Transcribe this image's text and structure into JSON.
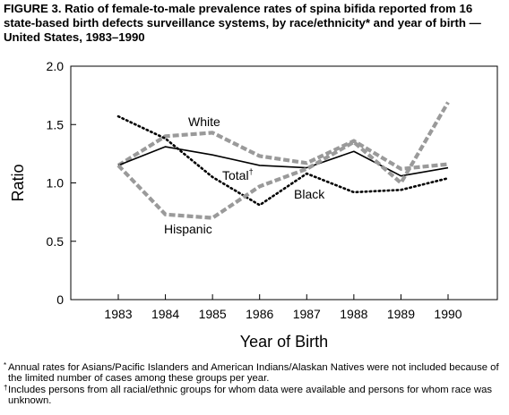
{
  "title": "FIGURE 3. Ratio of female-to-male prevalence rates of spina bifida reported from 16 state-based birth defects surveillance systems, by race/ethnicity* and year of birth — United States, 1983–1990",
  "chart_data": {
    "type": "line",
    "xlabel": "Year of Birth",
    "ylabel": "Ratio",
    "ylim": [
      0,
      2.0
    ],
    "yticks": [
      "0",
      "0.5",
      "1.0",
      "1.5",
      "2.0"
    ],
    "categories": [
      "1983",
      "1984",
      "1985",
      "1986",
      "1987",
      "1988",
      "1989",
      "1990"
    ],
    "grid": false,
    "series": [
      {
        "name": "White",
        "style": "dashed-gray",
        "color": "#9a9a9a",
        "values": [
          1.15,
          1.4,
          1.43,
          1.23,
          1.17,
          1.36,
          1.12,
          1.16
        ]
      },
      {
        "name": "Total",
        "name_mark": "†",
        "style": "solid",
        "color": "#000000",
        "values": [
          1.15,
          1.31,
          1.24,
          1.15,
          1.13,
          1.27,
          1.06,
          1.13
        ]
      },
      {
        "name": "Black",
        "style": "dotted",
        "color": "#000000",
        "values": [
          1.57,
          1.38,
          1.05,
          0.81,
          1.08,
          0.92,
          0.94,
          1.04
        ]
      },
      {
        "name": "Hispanic",
        "style": "dashed-gray",
        "color": "#9a9a9a",
        "values": [
          1.15,
          0.73,
          0.7,
          0.97,
          1.12,
          1.35,
          1.0,
          1.69
        ]
      }
    ]
  },
  "footnotes": [
    {
      "mark": "*",
      "text": "Annual rates for Asians/Pacific Islanders and American Indians/Alaskan Natives were not included because of the limited number of cases among these groups per year."
    },
    {
      "mark": "†",
      "text": "Includes persons from all racial/ethnic groups for whom data were available and persons for whom race was unknown."
    }
  ]
}
